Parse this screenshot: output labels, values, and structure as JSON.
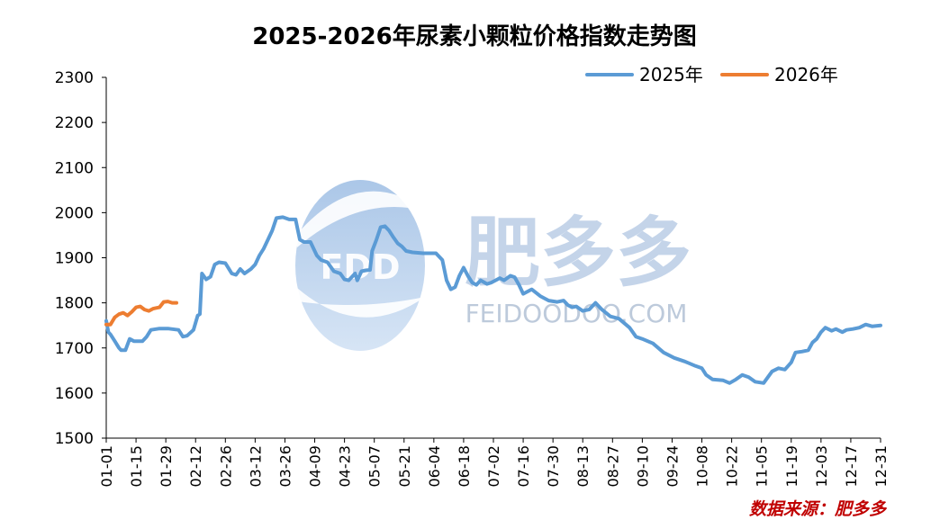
{
  "title": "2025-2026年尿素小颗粒价格指数走势图",
  "source_note": "数据来源：肥多多",
  "watermark": {
    "logo_text": "FDD",
    "brand": "肥多多",
    "site": "FEIDOODOO.COM"
  },
  "colors": {
    "series_2025": "#5b9bd5",
    "series_2026": "#ed7d31",
    "source_note": "#c00000",
    "axis": "#000000"
  },
  "chart_data": {
    "type": "line",
    "title": "2025-2026年尿素小颗粒价格指数走势图",
    "xlabel": "",
    "ylabel": "",
    "ylim": [
      1500,
      2300
    ],
    "yticks": [
      1500,
      1600,
      1700,
      1800,
      1900,
      2000,
      2100,
      2200,
      2300
    ],
    "x_range": [
      "01-01",
      "12-31"
    ],
    "xticks": [
      "01-01",
      "01-15",
      "01-29",
      "02-12",
      "02-26",
      "03-12",
      "03-26",
      "04-09",
      "04-23",
      "05-07",
      "05-21",
      "06-04",
      "06-18",
      "07-02",
      "07-16",
      "07-30",
      "08-13",
      "08-27",
      "09-10",
      "09-24",
      "10-08",
      "10-22",
      "11-05",
      "11-19",
      "12-03",
      "12-17",
      "12-31"
    ],
    "grid": false,
    "legend_position": "top-right",
    "series": [
      {
        "name": "2025年",
        "points": [
          [
            "01-01",
            1760
          ],
          [
            "01-02",
            1735
          ],
          [
            "01-03",
            1730
          ],
          [
            "01-05",
            1715
          ],
          [
            "01-07",
            1700
          ],
          [
            "01-08",
            1695
          ],
          [
            "01-10",
            1695
          ],
          [
            "01-12",
            1720
          ],
          [
            "01-14",
            1715
          ],
          [
            "01-18",
            1715
          ],
          [
            "01-20",
            1725
          ],
          [
            "01-22",
            1740
          ],
          [
            "01-26",
            1743
          ],
          [
            "01-30",
            1743
          ],
          [
            "02-04",
            1740
          ],
          [
            "02-06",
            1725
          ],
          [
            "02-08",
            1727
          ],
          [
            "02-11",
            1740
          ],
          [
            "02-13",
            1772
          ],
          [
            "02-14",
            1775
          ],
          [
            "02-15",
            1865
          ],
          [
            "02-17",
            1852
          ],
          [
            "02-19",
            1858
          ],
          [
            "02-21",
            1885
          ],
          [
            "02-23",
            1890
          ],
          [
            "02-26",
            1888
          ],
          [
            "03-01",
            1865
          ],
          [
            "03-03",
            1862
          ],
          [
            "03-05",
            1875
          ],
          [
            "03-07",
            1865
          ],
          [
            "03-10",
            1875
          ],
          [
            "03-12",
            1885
          ],
          [
            "03-14",
            1905
          ],
          [
            "03-16",
            1920
          ],
          [
            "03-18",
            1940
          ],
          [
            "03-20",
            1960
          ],
          [
            "03-22",
            1988
          ],
          [
            "03-25",
            1990
          ],
          [
            "03-28",
            1985
          ],
          [
            "03-31",
            1985
          ],
          [
            "04-02",
            1940
          ],
          [
            "04-04",
            1935
          ],
          [
            "04-07",
            1935
          ],
          [
            "04-10",
            1905
          ],
          [
            "04-12",
            1895
          ],
          [
            "04-15",
            1890
          ],
          [
            "04-18",
            1870
          ],
          [
            "04-21",
            1865
          ],
          [
            "04-23",
            1852
          ],
          [
            "04-25",
            1850
          ],
          [
            "04-28",
            1865
          ],
          [
            "04-29",
            1850
          ],
          [
            "05-01",
            1870
          ],
          [
            "05-03",
            1872
          ],
          [
            "05-05",
            1873
          ],
          [
            "05-06",
            1915
          ],
          [
            "05-08",
            1940
          ],
          [
            "05-10",
            1968
          ],
          [
            "05-12",
            1970
          ],
          [
            "05-14",
            1960
          ],
          [
            "05-16",
            1945
          ],
          [
            "05-18",
            1932
          ],
          [
            "05-20",
            1925
          ],
          [
            "05-22",
            1915
          ],
          [
            "05-25",
            1912
          ],
          [
            "05-30",
            1910
          ],
          [
            "06-02",
            1910
          ],
          [
            "06-05",
            1910
          ],
          [
            "06-08",
            1895
          ],
          [
            "06-10",
            1850
          ],
          [
            "06-12",
            1830
          ],
          [
            "06-14",
            1835
          ],
          [
            "06-16",
            1860
          ],
          [
            "06-18",
            1878
          ],
          [
            "06-20",
            1860
          ],
          [
            "06-22",
            1845
          ],
          [
            "06-24",
            1840
          ],
          [
            "06-26",
            1850
          ],
          [
            "06-29",
            1842
          ],
          [
            "07-01",
            1845
          ],
          [
            "07-03",
            1850
          ],
          [
            "07-05",
            1855
          ],
          [
            "07-07",
            1850
          ],
          [
            "07-10",
            1860
          ],
          [
            "07-12",
            1857
          ],
          [
            "07-14",
            1840
          ],
          [
            "07-16",
            1820
          ],
          [
            "07-18",
            1825
          ],
          [
            "07-20",
            1830
          ],
          [
            "07-24",
            1815
          ],
          [
            "07-28",
            1805
          ],
          [
            "08-01",
            1802
          ],
          [
            "08-04",
            1805
          ],
          [
            "08-06",
            1795
          ],
          [
            "08-08",
            1790
          ],
          [
            "08-10",
            1792
          ],
          [
            "08-13",
            1782
          ],
          [
            "08-16",
            1785
          ],
          [
            "08-19",
            1800
          ],
          [
            "08-22",
            1785
          ],
          [
            "08-26",
            1770
          ],
          [
            "08-30",
            1765
          ],
          [
            "09-04",
            1745
          ],
          [
            "09-07",
            1725
          ],
          [
            "09-10",
            1720
          ],
          [
            "09-15",
            1710
          ],
          [
            "09-20",
            1690
          ],
          [
            "09-25",
            1678
          ],
          [
            "09-30",
            1670
          ],
          [
            "10-05",
            1660
          ],
          [
            "10-08",
            1655
          ],
          [
            "10-10",
            1640
          ],
          [
            "10-13",
            1630
          ],
          [
            "10-18",
            1628
          ],
          [
            "10-21",
            1622
          ],
          [
            "10-24",
            1630
          ],
          [
            "10-27",
            1640
          ],
          [
            "10-30",
            1635
          ],
          [
            "11-02",
            1625
          ],
          [
            "11-06",
            1622
          ],
          [
            "11-08",
            1635
          ],
          [
            "11-10",
            1648
          ],
          [
            "11-13",
            1655
          ],
          [
            "11-16",
            1652
          ],
          [
            "11-19",
            1668
          ],
          [
            "11-21",
            1690
          ],
          [
            "11-24",
            1692
          ],
          [
            "11-27",
            1695
          ],
          [
            "11-29",
            1712
          ],
          [
            "12-01",
            1720
          ],
          [
            "12-03",
            1735
          ],
          [
            "12-05",
            1745
          ],
          [
            "12-08",
            1738
          ],
          [
            "12-10",
            1742
          ],
          [
            "12-13",
            1735
          ],
          [
            "12-15",
            1740
          ],
          [
            "12-18",
            1742
          ],
          [
            "12-21",
            1745
          ],
          [
            "12-24",
            1752
          ],
          [
            "12-27",
            1748
          ],
          [
            "12-31",
            1750
          ]
        ]
      },
      {
        "name": "2026年",
        "points": [
          [
            "01-01",
            1752
          ],
          [
            "01-03",
            1752
          ],
          [
            "01-05",
            1768
          ],
          [
            "01-07",
            1775
          ],
          [
            "01-09",
            1778
          ],
          [
            "01-11",
            1772
          ],
          [
            "01-13",
            1780
          ],
          [
            "01-15",
            1790
          ],
          [
            "01-17",
            1792
          ],
          [
            "01-19",
            1785
          ],
          [
            "01-21",
            1782
          ],
          [
            "01-23",
            1787
          ],
          [
            "01-26",
            1790
          ],
          [
            "01-28",
            1802
          ],
          [
            "01-30",
            1803
          ],
          [
            "02-01",
            1800
          ],
          [
            "02-03",
            1800
          ]
        ]
      }
    ]
  }
}
